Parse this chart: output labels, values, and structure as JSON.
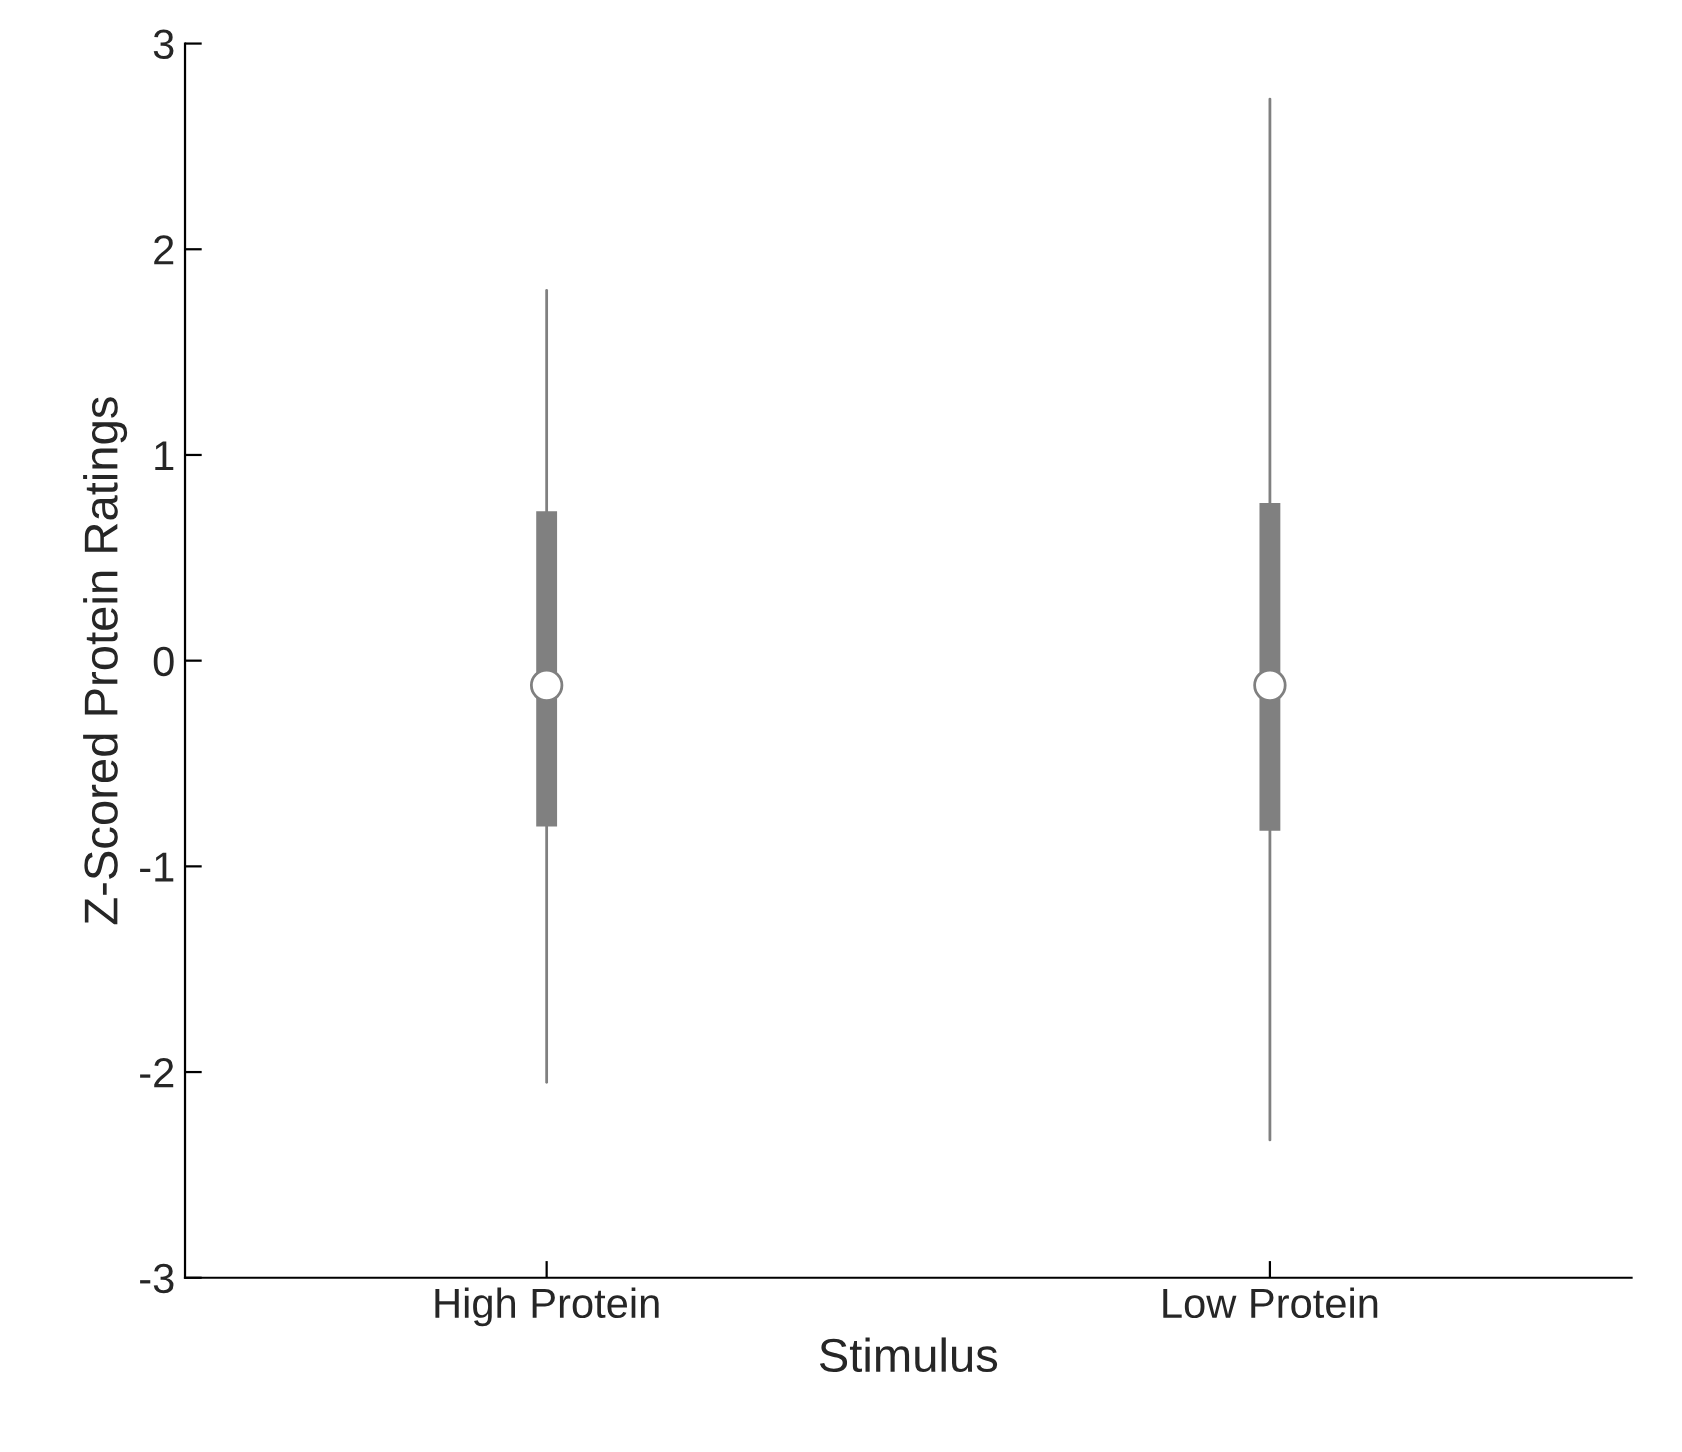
{
  "chart_data": {
    "type": "box",
    "xlabel": "Stimulus",
    "ylabel": "Z-Scored Protein Ratings",
    "categories": [
      "High Protein",
      "Low Protein"
    ],
    "color": "#808080",
    "boxes": [
      {
        "low": -2.05,
        "q1": -0.8,
        "median": -0.12,
        "q3": 0.72,
        "high": 1.8
      },
      {
        "low": -2.33,
        "q1": -0.82,
        "median": -0.12,
        "q3": 0.76,
        "high": 2.73
      }
    ],
    "ylim": [
      -3,
      3
    ],
    "yticks": [
      -3,
      -2,
      -1,
      0,
      1,
      2,
      3
    ],
    "grid": false
  }
}
